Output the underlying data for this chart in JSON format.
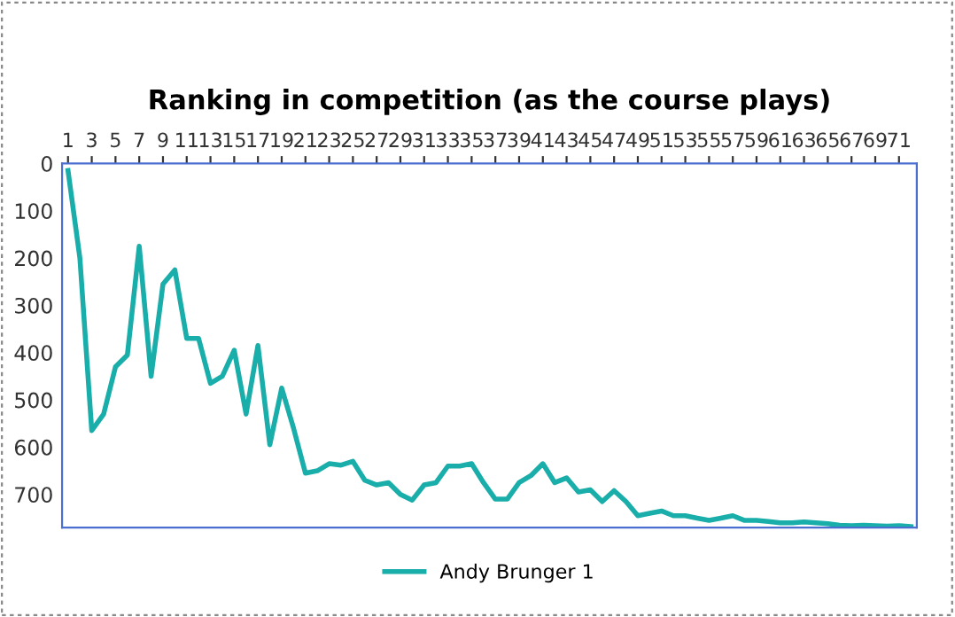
{
  "chart_data": {
    "type": "line",
    "title": "Ranking in competition (as the course plays)",
    "categories": [
      "1",
      null,
      "3",
      null,
      "5",
      null,
      "7",
      null,
      "9",
      null,
      "11",
      null,
      "13",
      null,
      "15",
      null,
      "17",
      null,
      "19",
      null,
      "21",
      null,
      "23",
      null,
      "25",
      null,
      "27",
      null,
      "29",
      null,
      "31",
      null,
      "33",
      null,
      "35",
      null,
      "37",
      null,
      "39",
      null,
      "41",
      null,
      "43",
      null,
      "45",
      null,
      "47",
      null,
      "49",
      null,
      "51",
      null,
      "53",
      null,
      "55",
      null,
      "57",
      null,
      "59",
      null,
      "61",
      null,
      "63",
      null,
      "65",
      null,
      "67",
      null,
      "69",
      null,
      "71",
      null
    ],
    "series": [
      {
        "name": "Andy Brunger 1",
        "color": "#1aaeaa",
        "values": [
          15,
          200,
          565,
          530,
          430,
          405,
          175,
          450,
          255,
          225,
          370,
          370,
          465,
          450,
          395,
          530,
          385,
          595,
          475,
          560,
          655,
          650,
          635,
          638,
          630,
          670,
          680,
          675,
          700,
          712,
          680,
          675,
          640,
          640,
          635,
          675,
          710,
          710,
          675,
          660,
          635,
          675,
          665,
          695,
          690,
          715,
          692,
          715,
          745,
          740,
          735,
          745,
          745,
          750,
          755,
          750,
          745,
          755,
          755,
          757,
          760,
          760,
          758,
          760,
          762,
          765,
          766,
          765,
          766,
          767,
          766,
          768
        ]
      }
    ],
    "ylim": [
      770,
      0
    ],
    "yticks": [
      0,
      100,
      200,
      300,
      400,
      500,
      600,
      700
    ],
    "grid": false,
    "legend": "bottom",
    "marker": "none",
    "line_style": "solid"
  }
}
